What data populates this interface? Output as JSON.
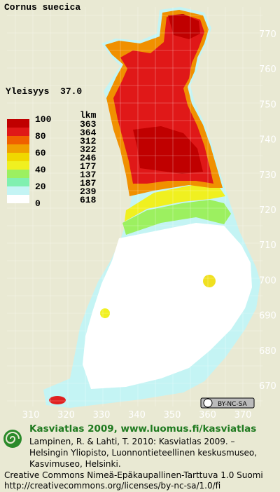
{
  "title": "Cornus suecica",
  "frequency": "Yleisyys  37.0",
  "legend": {
    "header": "lkm",
    "scale_labels": [
      "100",
      "80",
      "60",
      "40",
      "20",
      "0"
    ],
    "counts": [
      "363",
      "364",
      "312",
      "322",
      "246",
      "177",
      "137",
      "187",
      "239",
      "618"
    ]
  },
  "map": {
    "y_labels": [
      "770",
      "760",
      "750",
      "740",
      "730",
      "720",
      "710",
      "700",
      "690",
      "680",
      "670"
    ],
    "x_labels": [
      "310",
      "320",
      "330",
      "340",
      "350",
      "360",
      "370"
    ]
  },
  "badge": {
    "license": "BY-NC-SA"
  },
  "footer": {
    "heading": "Kasviatlas 2009, www.luomus.fi/kasviatlas",
    "citation": [
      "Lampinen, R. & Lahti, T. 2010: Kasviatlas 2009. –",
      "Helsingin Yliopisto, Luonnontieteellinen keskusmuseo,",
      "Kasvimuseo, Helsinki."
    ],
    "license": [
      "Creative Commons Nimeä-Epäkaupallinen-Tarttuva 1.0 Suomi",
      "http://creativecommons.org/licenses/by-nc-sa/1.0/fi"
    ]
  }
}
